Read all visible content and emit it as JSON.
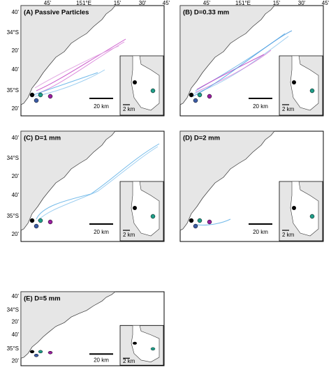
{
  "top_axis_labels": [
    "45'",
    "151°E",
    "15'",
    "30'",
    "45'"
  ],
  "left_axis_labels": [
    "40'",
    "34°S",
    "20'",
    "40'",
    "35°S",
    "20'"
  ],
  "panels": [
    {
      "title": "(A) Passive Particles",
      "scale_main": "20 km",
      "scale_inset": "2 km"
    },
    {
      "title": "(B) D=0.33 mm",
      "scale_main": "20 km",
      "scale_inset": "2 km"
    },
    {
      "title": "(C) D=1 mm",
      "scale_main": "20 km",
      "scale_inset": "2 km"
    },
    {
      "title": "(D) D=2 mm",
      "scale_main": "20 km",
      "scale_inset": "2 km"
    },
    {
      "title": "(E) D=5 mm",
      "scale_main": "20 km",
      "scale_inset": "2 km"
    }
  ]
}
